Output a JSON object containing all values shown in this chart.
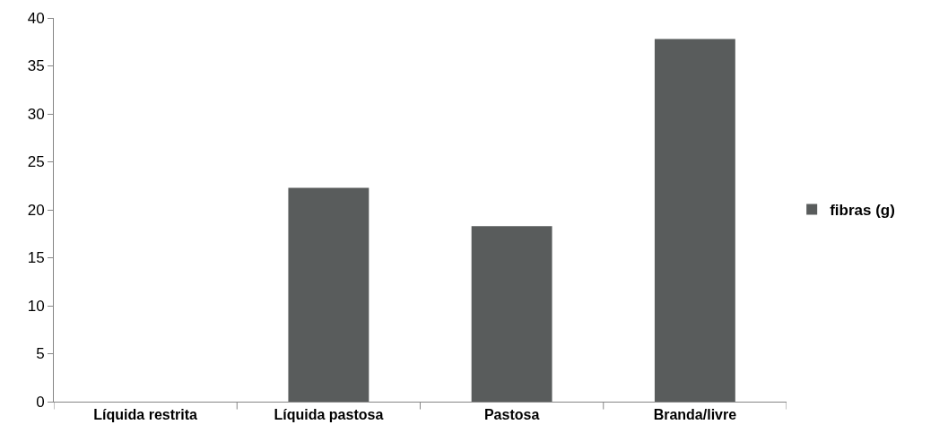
{
  "chart_data": {
    "type": "bar",
    "categories": [
      "Líquida restrita",
      "Líquida pastosa",
      "Pastosa",
      "Branda/livre"
    ],
    "series": [
      {
        "name": "fibras (g)",
        "color": "#595c5c",
        "values": [
          0,
          22.3,
          18.3,
          37.8
        ]
      }
    ],
    "ylim": [
      0,
      40
    ],
    "yticks": [
      0,
      5,
      10,
      15,
      20,
      25,
      30,
      35,
      40
    ],
    "legend": "right"
  }
}
